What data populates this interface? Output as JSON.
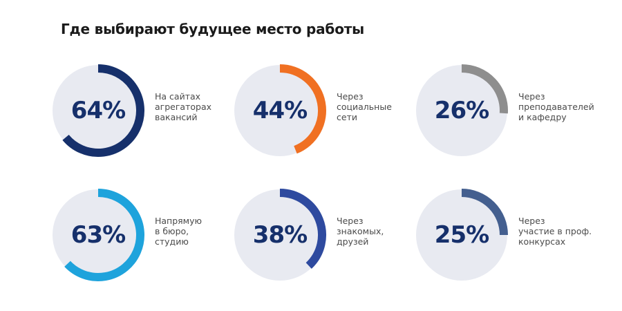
{
  "title": "Где выбирают будущее место работы",
  "chart_data": {
    "type": "pie",
    "title": "Где выбирают будущее место работы",
    "items": [
      {
        "label": "На сайтах\nагрегаторах\nвакансий",
        "value": 64,
        "display": "64%",
        "color": "#16306b"
      },
      {
        "label": "Через\nсоциальные\nсети",
        "value": 44,
        "display": "44%",
        "color": "#f07022"
      },
      {
        "label": "Через\nпреподавателей\nи кафедру",
        "value": 26,
        "display": "26%",
        "color": "#8e8e8e"
      },
      {
        "label": "Напрямую\nв бюро,\nстудию",
        "value": 63,
        "display": "63%",
        "color": "#1ea3dc"
      },
      {
        "label": "Через\nзнакомых,\nдрузей",
        "value": 38,
        "display": "38%",
        "color": "#2e4a9f"
      },
      {
        "label": "Через\nучастие в проф.\nконкурсах",
        "value": 25,
        "display": "25%",
        "color": "#445f8f"
      }
    ],
    "track_color": "#e8eaf1"
  }
}
